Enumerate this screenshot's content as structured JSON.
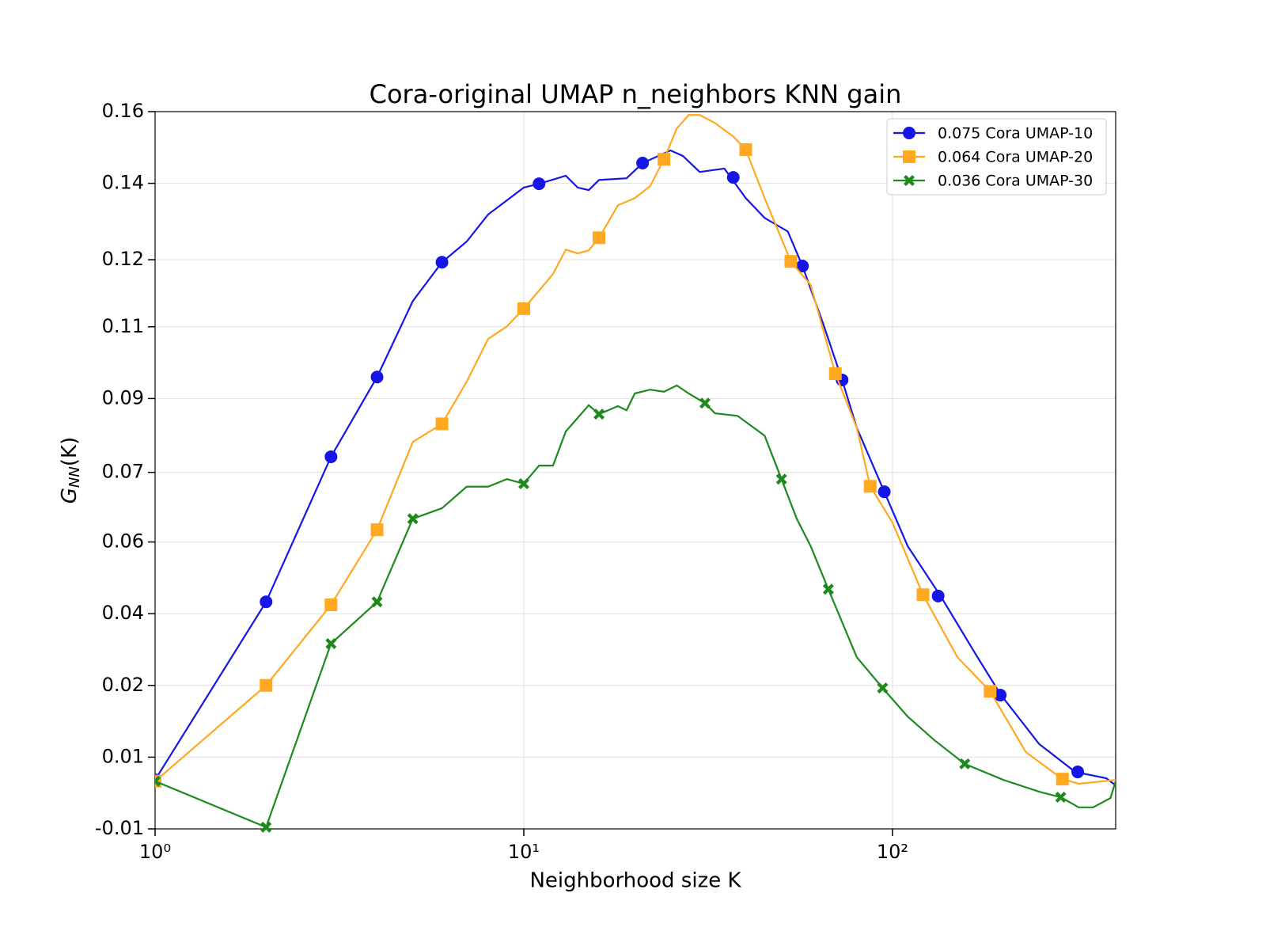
{
  "chart_data": {
    "type": "line",
    "title": "Cora-original UMAP n_neighbors KNN gain",
    "xlabel": "Neighborhood size K",
    "ylabel_parts": [
      "G",
      "NN",
      "(K)"
    ],
    "xscale": "log",
    "xlim": [
      1,
      403
    ],
    "xticks": [
      {
        "value": 1,
        "label": "10⁰"
      },
      {
        "value": 10,
        "label": "10¹"
      },
      {
        "value": 100,
        "label": "10²"
      }
    ],
    "ylim": [
      -0.01,
      0.16
    ],
    "yticks": [
      -0.01,
      {
        "value": 0.007,
        "label": "0.01"
      },
      {
        "value": 0.024,
        "label": "0.02"
      },
      {
        "value": 0.041,
        "label": "0.04"
      },
      {
        "value": 0.058,
        "label": "0.06"
      },
      {
        "value": 0.0745,
        "label": "0.07"
      },
      {
        "value": 0.092,
        "label": "0.09"
      },
      {
        "value": 0.109,
        "label": "0.11"
      },
      {
        "value": 0.1249,
        "label": "0.12"
      },
      {
        "value": 0.143,
        "label": "0.14"
      },
      0.16
    ],
    "grid": true,
    "legend": "upper right",
    "series": [
      {
        "name": "0.075 Cora UMAP-10",
        "color": "#1515e6",
        "marker": "circle",
        "x": [
          1,
          2,
          3,
          4,
          5,
          6,
          7,
          8,
          10,
          11,
          13,
          14,
          15,
          16,
          19,
          21,
          25,
          27,
          30,
          35,
          40,
          45,
          52,
          57,
          65,
          73,
          80,
          95,
          110,
          135,
          170,
          197,
          250,
          313,
          380,
          403
        ],
        "values": [
          0.0016,
          0.0438,
          0.0782,
          0.0971,
          0.1151,
          0.1243,
          0.1292,
          0.1356,
          0.142,
          0.1429,
          0.1448,
          0.142,
          0.1414,
          0.1438,
          0.1442,
          0.1478,
          0.1508,
          0.1495,
          0.1457,
          0.1465,
          0.1395,
          0.1348,
          0.1316,
          0.1234,
          0.1095,
          0.0964,
          0.0851,
          0.0699,
          0.057,
          0.0452,
          0.0307,
          0.0217,
          0.0101,
          0.0035,
          0.002,
          0.0003
        ],
        "marker_x": [
          1,
          2,
          3,
          4,
          6,
          11,
          21,
          37,
          57,
          73,
          95,
          133,
          196,
          318
        ],
        "marker_values": [
          0.0016,
          0.0438,
          0.0782,
          0.0971,
          0.1243,
          0.1429,
          0.1478,
          0.1444,
          0.1234,
          0.0964,
          0.0699,
          0.0452,
          0.0217,
          0.0035
        ]
      },
      {
        "name": "0.064 Cora UMAP-20",
        "color": "#ffa820",
        "marker": "square",
        "x": [
          1,
          2,
          3,
          4,
          5,
          6,
          7,
          8,
          9,
          10,
          12,
          13,
          14,
          15,
          16,
          18,
          20,
          22,
          24,
          26,
          28,
          30,
          33,
          37,
          40,
          45,
          53,
          60,
          70,
          80,
          87,
          100,
          121,
          150,
          184,
          230,
          289,
          320,
          403
        ],
        "values": [
          0.0013,
          0.024,
          0.0431,
          0.0609,
          0.0817,
          0.086,
          0.096,
          0.1061,
          0.1091,
          0.1133,
          0.1215,
          0.1273,
          0.1264,
          0.1271,
          0.1301,
          0.1378,
          0.1395,
          0.1423,
          0.1487,
          0.156,
          0.1592,
          0.1592,
          0.1573,
          0.1541,
          0.151,
          0.1395,
          0.1245,
          0.1189,
          0.0979,
          0.0851,
          0.0712,
          0.0626,
          0.0455,
          0.0307,
          0.0226,
          0.0082,
          0.0018,
          0.0007,
          0.0016
        ],
        "marker_x": [
          1,
          2,
          3,
          4,
          6,
          10,
          16,
          24,
          40,
          53,
          70,
          87,
          121,
          184,
          289
        ],
        "marker_values": [
          0.0013,
          0.024,
          0.0431,
          0.0609,
          0.086,
          0.1133,
          0.1301,
          0.1487,
          0.151,
          0.1245,
          0.0979,
          0.0712,
          0.0455,
          0.0226,
          0.0018
        ]
      },
      {
        "name": "0.036 Cora UMAP-30",
        "color": "#1e8a1e",
        "marker": "x",
        "x": [
          1,
          2,
          3,
          4,
          5,
          6,
          7,
          8,
          9,
          10,
          11,
          12,
          13,
          15,
          16,
          18,
          19,
          20,
          22,
          24,
          26,
          28,
          31,
          33,
          38,
          42,
          45,
          50,
          55,
          60,
          67,
          80,
          94,
          110,
          130,
          157,
          200,
          250,
          286,
          320,
          350,
          390,
          403
        ],
        "values": [
          0.0013,
          -0.0096,
          0.0339,
          0.0438,
          0.0635,
          0.066,
          0.0711,
          0.0711,
          0.0729,
          0.0718,
          0.0761,
          0.0761,
          0.0842,
          0.0904,
          0.0883,
          0.0902,
          0.0892,
          0.0932,
          0.0941,
          0.0936,
          0.0951,
          0.0932,
          0.0909,
          0.0885,
          0.0879,
          0.0851,
          0.0832,
          0.0729,
          0.0635,
          0.057,
          0.0468,
          0.0307,
          0.0234,
          0.0166,
          0.011,
          0.0054,
          0.0016,
          -0.0012,
          -0.0025,
          -0.0049,
          -0.0049,
          -0.0027,
          0.0013
        ],
        "marker_x": [
          1,
          2,
          3,
          4,
          5,
          10,
          16,
          31,
          50,
          67,
          94,
          157,
          286
        ],
        "marker_values": [
          0.0013,
          -0.0096,
          0.0339,
          0.0438,
          0.0635,
          0.0718,
          0.0883,
          0.0909,
          0.0729,
          0.0468,
          0.0234,
          0.0054,
          -0.0025
        ]
      }
    ]
  }
}
